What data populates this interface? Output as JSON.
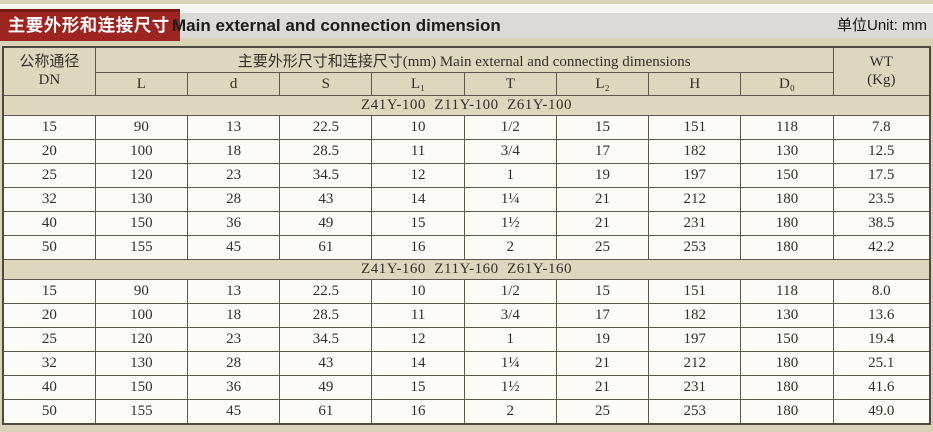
{
  "colors": {
    "accent_red": "#9e2421",
    "header_beige": "#ddd7bd",
    "band_gray": "#dbdad6"
  },
  "title": {
    "zh": "主要外形和连接尺寸",
    "en": "Main external and connection dimension"
  },
  "unit_label": "单位Unit: mm",
  "table": {
    "dn_header": {
      "zh": "公称通径",
      "en": "DN"
    },
    "span_header": "主要外形尺寸和连接尺寸(mm) Main external and connecting dimensions",
    "dim_columns": [
      "L",
      "d",
      "S",
      "L₁",
      "T",
      "L₂",
      "H",
      "D₀"
    ],
    "wt_header": {
      "line1": "WT",
      "line2": "(Kg)"
    },
    "sections": [
      {
        "model": "Z41Y-100  Z11Y-100  Z61Y-100",
        "rows": [
          [
            "15",
            "90",
            "13",
            "22.5",
            "10",
            "1/2",
            "15",
            "151",
            "118",
            "7.8"
          ],
          [
            "20",
            "100",
            "18",
            "28.5",
            "11",
            "3/4",
            "17",
            "182",
            "130",
            "12.5"
          ],
          [
            "25",
            "120",
            "23",
            "34.5",
            "12",
            "1",
            "19",
            "197",
            "150",
            "17.5"
          ],
          [
            "32",
            "130",
            "28",
            "43",
            "14",
            "1¼",
            "21",
            "212",
            "180",
            "23.5"
          ],
          [
            "40",
            "150",
            "36",
            "49",
            "15",
            "1½",
            "21",
            "231",
            "180",
            "38.5"
          ],
          [
            "50",
            "155",
            "45",
            "61",
            "16",
            "2",
            "25",
            "253",
            "180",
            "42.2"
          ]
        ]
      },
      {
        "model": "Z41Y-160  Z11Y-160  Z61Y-160",
        "rows": [
          [
            "15",
            "90",
            "13",
            "22.5",
            "10",
            "1/2",
            "15",
            "151",
            "118",
            "8.0"
          ],
          [
            "20",
            "100",
            "18",
            "28.5",
            "11",
            "3/4",
            "17",
            "182",
            "130",
            "13.6"
          ],
          [
            "25",
            "120",
            "23",
            "34.5",
            "12",
            "1",
            "19",
            "197",
            "150",
            "19.4"
          ],
          [
            "32",
            "130",
            "28",
            "43",
            "14",
            "1¼",
            "21",
            "212",
            "180",
            "25.1"
          ],
          [
            "40",
            "150",
            "36",
            "49",
            "15",
            "1½",
            "21",
            "231",
            "180",
            "41.6"
          ],
          [
            "50",
            "155",
            "45",
            "61",
            "16",
            "2",
            "25",
            "253",
            "180",
            "49.0"
          ]
        ]
      }
    ]
  }
}
